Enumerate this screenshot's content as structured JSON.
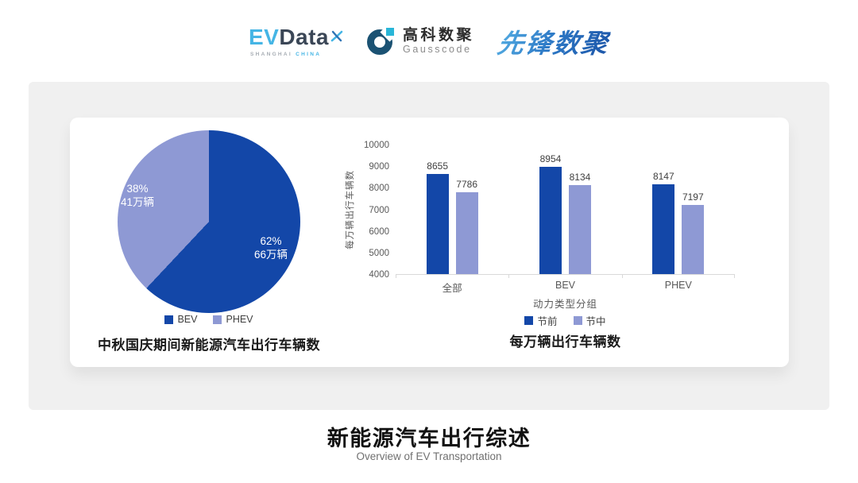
{
  "header": {
    "evdata_logo": {
      "ev": "EV",
      "data": "Data",
      "sub_shanghai": "SHANGHAI",
      "sub_china": "CHINA"
    },
    "gausscode_logo": {
      "name_cn": "高科数聚",
      "name_en": "Gausscode"
    },
    "pioneer_logo": {
      "name_cn": "先锋数聚"
    }
  },
  "chart_data": [
    {
      "type": "pie",
      "title": "中秋国庆期间新能源汽车出行车辆数",
      "slices": [
        {
          "label": "BEV",
          "percent": 62,
          "percent_label": "62%",
          "value_label": "66万辆",
          "color": "#1347A8"
        },
        {
          "label": "PHEV",
          "percent": 38,
          "percent_label": "38%",
          "value_label": "41万辆",
          "color": "#8E99D4"
        }
      ],
      "start_angle": "top, clockwise",
      "legend_position": "bottom"
    },
    {
      "type": "bar",
      "title": "每万辆出行车辆数",
      "categories": [
        "全部",
        "BEV",
        "PHEV"
      ],
      "series": [
        {
          "name": "节前",
          "color": "#1347A8",
          "values": [
            8655,
            8954,
            8147
          ]
        },
        {
          "name": "节中",
          "color": "#8E99D4",
          "values": [
            7786,
            8134,
            7197
          ]
        }
      ],
      "xlabel": "动力类型分组",
      "ylabel": "每万辆出行车辆数",
      "ylim": [
        4000,
        10000
      ],
      "yticks": [
        4000,
        5000,
        6000,
        7000,
        8000,
        9000,
        10000
      ],
      "grid": false,
      "legend_position": "bottom"
    }
  ],
  "footer": {
    "title": "新能源汽车出行综述",
    "subtitle": "Overview of EV Transportation"
  },
  "colors": {
    "primary_dark_blue": "#1347A8",
    "light_periwinkle": "#8E99D4",
    "panel_gray": "#F0F0F0",
    "evdata_blue": "#45B5E5",
    "evdata_dark": "#3A4656",
    "gausscode_dark": "#1B5273",
    "gausscode_cyan": "#29B6D8",
    "axis_text_gray": "#595959"
  }
}
